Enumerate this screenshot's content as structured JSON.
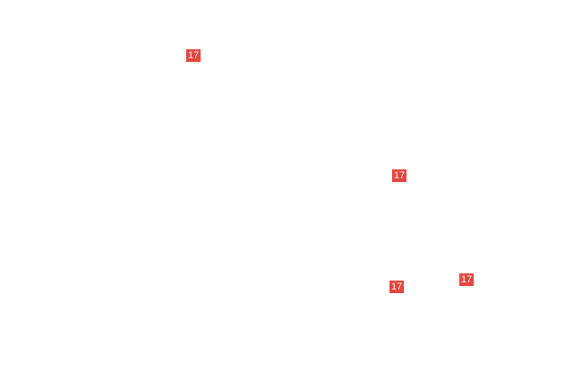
{
  "accent_color": "#e8453c",
  "markers": [
    {
      "label": "17"
    },
    {
      "label": "17"
    },
    {
      "label": "17"
    },
    {
      "label": "17"
    }
  ]
}
